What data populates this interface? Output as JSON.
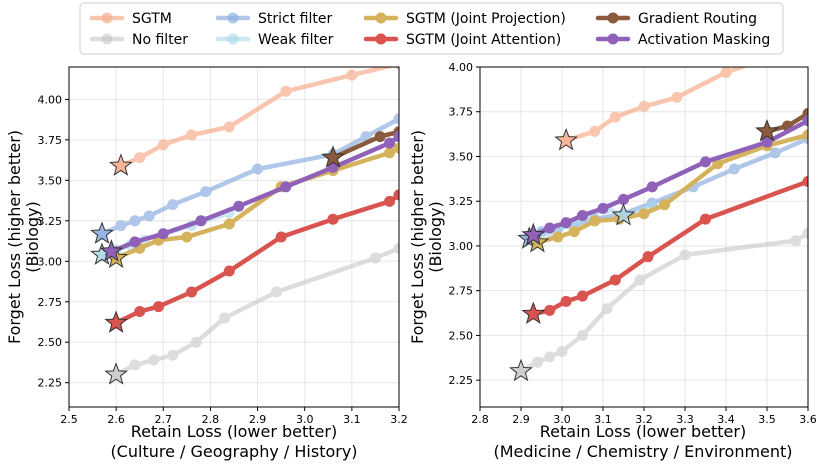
{
  "legend": {
    "placement": "top-center",
    "entries": [
      {
        "label": "SGTM",
        "color": "#f7b294",
        "alpha": 0.75
      },
      {
        "label": "No filter",
        "color": "#c8c8c8",
        "alpha": 0.6
      },
      {
        "label": "Strict filter",
        "color": "#8fb0e0",
        "alpha": 0.7
      },
      {
        "label": "Weak filter",
        "color": "#a8d8ea",
        "alpha": 0.6
      },
      {
        "label": "SGTM (Joint Projection)",
        "color": "#d4b35c",
        "alpha": 1
      },
      {
        "label": "SGTM (Joint Attention)",
        "color": "#d9534f",
        "alpha": 1
      },
      {
        "label": "Gradient Routing",
        "color": "#8a5a3c",
        "alpha": 1
      },
      {
        "label": "Activation Masking",
        "color": "#9061b8",
        "alpha": 1
      }
    ]
  },
  "chart_data": [
    {
      "type": "line",
      "title": "",
      "xlabel": "Retain Loss (lower better)",
      "xlabel2": "(Culture / Geography / History)",
      "ylabel": "Forget Loss (higher better)",
      "ylabel2": "(Biology)",
      "xlim": [
        2.5,
        3.2
      ],
      "ylim": [
        2.1,
        4.2
      ],
      "xticks": [
        2.5,
        2.6,
        2.7,
        2.8,
        2.9,
        3.0,
        3.1,
        3.2
      ],
      "xtick_labels": [
        "2.5",
        "2.6",
        "2.7",
        "2.8",
        "2.9",
        "3.0",
        "3.1",
        "3.2"
      ],
      "yticks": [
        2.25,
        2.5,
        2.75,
        3.0,
        3.25,
        3.5,
        3.75,
        4.0
      ],
      "ytick_labels": [
        "2.25",
        "2.50",
        "2.75",
        "3.00",
        "3.25",
        "3.50",
        "3.75",
        "4.00"
      ],
      "grid": true,
      "series": [
        {
          "name": "SGTM",
          "x": [
            2.61,
            2.65,
            2.7,
            2.76,
            2.84,
            2.96,
            3.1,
            3.2
          ],
          "y": [
            3.59,
            3.64,
            3.72,
            3.78,
            3.83,
            4.05,
            4.15,
            4.22
          ],
          "star": [
            2.61,
            3.59
          ]
        },
        {
          "name": "No filter",
          "x": [
            2.6,
            2.64,
            2.68,
            2.72,
            2.77,
            2.83,
            2.94,
            3.15,
            3.2
          ],
          "y": [
            2.3,
            2.36,
            2.39,
            2.42,
            2.5,
            2.65,
            2.81,
            3.02,
            3.08
          ],
          "star": [
            2.6,
            2.3
          ]
        },
        {
          "name": "Strict filter",
          "x": [
            2.57,
            2.61,
            2.64,
            2.67,
            2.72,
            2.79,
            2.9,
            3.06,
            3.13,
            3.2
          ],
          "y": [
            3.17,
            3.22,
            3.25,
            3.28,
            3.35,
            3.43,
            3.57,
            3.66,
            3.77,
            3.88
          ],
          "star": [
            2.57,
            3.17
          ]
        },
        {
          "name": "Weak filter",
          "x": [
            2.57,
            2.6,
            2.63,
            2.66,
            2.7,
            2.76,
            2.84
          ],
          "y": [
            3.04,
            3.07,
            3.1,
            3.13,
            3.17,
            3.22,
            3.3
          ],
          "star": [
            2.57,
            3.04
          ]
        },
        {
          "name": "SGTM (Joint Projection)",
          "x": [
            2.6,
            2.65,
            2.69,
            2.75,
            2.84,
            2.95,
            3.06,
            3.18,
            3.2
          ],
          "y": [
            3.02,
            3.08,
            3.13,
            3.15,
            3.23,
            3.46,
            3.56,
            3.67,
            3.7
          ],
          "star": [
            2.6,
            3.02
          ]
        },
        {
          "name": "SGTM (Joint Attention)",
          "x": [
            2.6,
            2.65,
            2.69,
            2.76,
            2.84,
            2.95,
            3.06,
            3.18,
            3.2
          ],
          "y": [
            2.62,
            2.69,
            2.72,
            2.81,
            2.94,
            3.15,
            3.26,
            3.37,
            3.41
          ],
          "star": [
            2.6,
            2.62
          ]
        },
        {
          "name": "Gradient Routing",
          "x": [
            3.06,
            3.16,
            3.2
          ],
          "y": [
            3.64,
            3.77,
            3.8
          ],
          "star": [
            3.06,
            3.64
          ]
        },
        {
          "name": "Activation Masking",
          "x": [
            2.59,
            2.64,
            2.7,
            2.78,
            2.86,
            2.96,
            3.06,
            3.18,
            3.2
          ],
          "y": [
            3.06,
            3.12,
            3.17,
            3.25,
            3.34,
            3.46,
            3.58,
            3.73,
            3.77
          ],
          "star": [
            2.59,
            3.06
          ]
        }
      ]
    },
    {
      "type": "line",
      "title": "",
      "xlabel": "Retain Loss (lower better)",
      "xlabel2": "(Medicine / Chemistry / Environment)",
      "ylabel": "Forget Loss (higher better)",
      "ylabel2": "(Biology)",
      "xlim": [
        2.8,
        3.6
      ],
      "ylim": [
        2.1,
        4.0
      ],
      "xticks": [
        2.8,
        2.9,
        3.0,
        3.1,
        3.2,
        3.3,
        3.4,
        3.5,
        3.6
      ],
      "xtick_labels": [
        "2.8",
        "2.9",
        "3.0",
        "3.1",
        "3.2",
        "3.3",
        "3.4",
        "3.5",
        "3.6"
      ],
      "yticks": [
        2.25,
        2.5,
        2.75,
        3.0,
        3.25,
        3.5,
        3.75,
        4.0
      ],
      "ytick_labels": [
        "2.25",
        "2.50",
        "2.75",
        "3.00",
        "3.25",
        "3.50",
        "3.75",
        "4.00"
      ],
      "grid": true,
      "series": [
        {
          "name": "SGTM",
          "x": [
            3.01,
            3.08,
            3.13,
            3.2,
            3.28,
            3.4,
            3.5
          ],
          "y": [
            3.59,
            3.64,
            3.72,
            3.78,
            3.83,
            3.97,
            4.05
          ],
          "star": [
            3.01,
            3.59
          ]
        },
        {
          "name": "No filter",
          "x": [
            2.9,
            2.94,
            2.97,
            3.0,
            3.05,
            3.11,
            3.19,
            3.3,
            3.57,
            3.6
          ],
          "y": [
            2.3,
            2.35,
            2.38,
            2.41,
            2.5,
            2.65,
            2.81,
            2.95,
            3.03,
            3.07
          ],
          "star": [
            2.9,
            2.3
          ]
        },
        {
          "name": "Strict filter",
          "x": [
            2.92,
            2.95,
            2.99,
            3.03,
            3.08,
            3.15,
            3.22,
            3.32,
            3.42,
            3.52,
            3.6
          ],
          "y": [
            3.04,
            3.08,
            3.1,
            3.12,
            3.15,
            3.18,
            3.24,
            3.33,
            3.43,
            3.52,
            3.6
          ],
          "star": [
            2.92,
            3.04
          ]
        },
        {
          "name": "Weak filter",
          "x": [
            2.92,
            2.97,
            3.02,
            3.07,
            3.11,
            3.15,
            3.22
          ],
          "y": [
            3.04,
            3.07,
            3.12,
            3.17,
            3.21,
            3.17,
            3.22
          ],
          "star": [
            3.15,
            3.17
          ]
        },
        {
          "name": "SGTM (Joint Projection)",
          "x": [
            2.94,
            2.99,
            3.03,
            3.08,
            3.14,
            3.2,
            3.25,
            3.38,
            3.5,
            3.6
          ],
          "y": [
            3.02,
            3.05,
            3.08,
            3.14,
            3.15,
            3.18,
            3.23,
            3.46,
            3.56,
            3.62
          ],
          "star": [
            2.94,
            3.02
          ]
        },
        {
          "name": "SGTM (Joint Attention)",
          "x": [
            2.93,
            2.97,
            3.01,
            3.05,
            3.13,
            3.21,
            3.35,
            3.6
          ],
          "y": [
            2.62,
            2.64,
            2.69,
            2.72,
            2.81,
            2.94,
            3.15,
            3.36
          ],
          "star": [
            2.93,
            2.62
          ]
        },
        {
          "name": "Gradient Routing",
          "x": [
            3.5,
            3.55,
            3.6
          ],
          "y": [
            3.64,
            3.67,
            3.74
          ],
          "star": [
            3.5,
            3.64
          ]
        },
        {
          "name": "Activation Masking",
          "x": [
            2.93,
            2.97,
            3.01,
            3.05,
            3.1,
            3.15,
            3.22,
            3.35,
            3.5,
            3.6
          ],
          "y": [
            3.06,
            3.1,
            3.13,
            3.17,
            3.21,
            3.26,
            3.33,
            3.47,
            3.58,
            3.7
          ],
          "star": [
            2.93,
            3.06
          ]
        }
      ]
    }
  ]
}
